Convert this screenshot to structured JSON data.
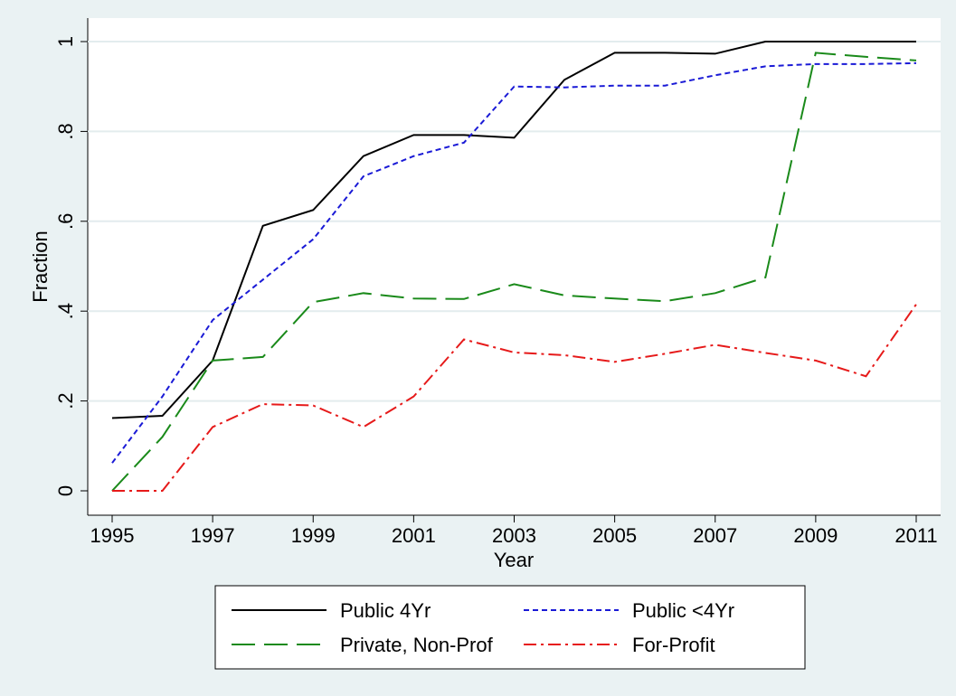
{
  "chart_data": {
    "type": "line",
    "x_label": "Year",
    "y_label": "Fraction",
    "x": [
      1995,
      1996,
      1997,
      1998,
      1999,
      2000,
      2001,
      2002,
      2003,
      2004,
      2005,
      2006,
      2007,
      2008,
      2009,
      2010,
      2011
    ],
    "series": [
      {
        "name": "Public 4Yr",
        "color": "#000000",
        "dash": "none",
        "values": [
          0.162,
          0.167,
          0.29,
          0.59,
          0.625,
          0.745,
          0.792,
          0.792,
          0.786,
          0.915,
          0.975,
          0.975,
          0.973,
          1,
          1,
          1,
          1
        ]
      },
      {
        "name": "Public <4Yr",
        "color": "#1a1ad6",
        "dash": "6 4",
        "values": [
          0.062,
          0.21,
          0.38,
          0.47,
          0.56,
          0.7,
          0.745,
          0.775,
          0.9,
          0.898,
          0.902,
          0.902,
          0.925,
          0.945,
          0.95,
          0.95,
          0.952
        ]
      },
      {
        "name": "Private, Non-Prof",
        "color": "#1a8a1a",
        "dash": "26 10",
        "values": [
          0,
          0.12,
          0.29,
          0.298,
          0.42,
          0.44,
          0.428,
          0.427,
          0.46,
          0.435,
          0.428,
          0.422,
          0.44,
          0.475,
          0.975,
          0.966,
          0.958
        ]
      },
      {
        "name": "For-Profit",
        "color": "#e61a1a",
        "dash": "14 5 3 5",
        "values": [
          0,
          0,
          0.142,
          0.193,
          0.19,
          0.142,
          0.21,
          0.337,
          0.308,
          0.302,
          0.287,
          0.305,
          0.325,
          0.307,
          0.29,
          0.255,
          0.415
        ]
      }
    ],
    "xlim": [
      1995,
      2011
    ],
    "xticks": [
      1995,
      1997,
      1999,
      2001,
      2003,
      2005,
      2007,
      2009,
      2011
    ],
    "ylim": [
      0,
      1
    ],
    "yticks": [
      0,
      {
        "value": 0.2,
        "label": ".2"
      },
      {
        "value": 0.4,
        "label": ".4"
      },
      {
        "value": 0.6,
        "label": ".6"
      },
      {
        "value": 0.8,
        "label": ".8"
      },
      1
    ],
    "grid": true,
    "legend": "bottom"
  }
}
